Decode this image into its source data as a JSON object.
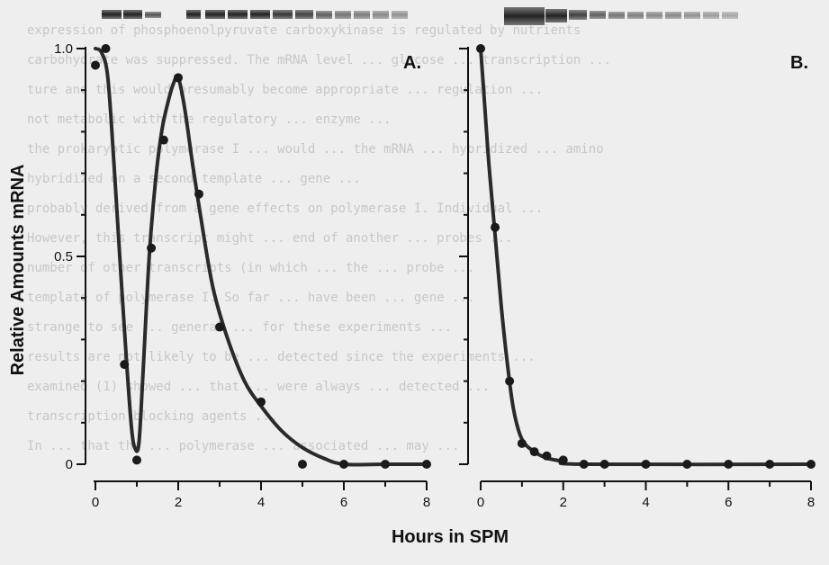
{
  "background_text": [
    "expression of phosphoenolpyruvate carboxykinase is regulated by nutrients",
    "carbohydrate was suppressed. The mRNA level ... glucose ... transcription ...",
    "ture and this would presumably become appropriate ... regulation ...",
    "not metabolic with the regulatory ... enzyme ...",
    "the prokaryotic polymerase I ... would ... the mRNA ... hybridized ... amino",
    "hybridized on a second template ... gene ...",
    "probably derived from a gene effects on polymerase I. Individual ...",
    "However, this transcript might ... end of another ... probes ...",
    "number of other transcripts (in which ... the ... probe ...",
    "template of polymerase I. So far ... have been ... gene ...",
    "strange to see ... general ... for these experiments ...",
    "results are not likely to be ... detected since the experiments ...",
    "examined (1) showed ... that ... were always ... detected ...",
    "transcription blocking agents ...",
    "In ... that the ... polymerase ... associated ... may ..."
  ],
  "colors": {
    "curve": "#2a2a2a",
    "axis": "#111111",
    "text": "#111111",
    "background": "#eeeeee"
  },
  "chart_data": [
    {
      "panel": "A.",
      "type": "scatter",
      "xlabel": "Hours in SPM",
      "ylabel": "Relative Amounts mRNA",
      "xlim": [
        0,
        8
      ],
      "ylim": [
        0,
        1.0
      ],
      "x_ticks": [
        "0",
        "2",
        "4",
        "6",
        "8"
      ],
      "y_ticks": [
        "0",
        "0.5",
        "1.0"
      ],
      "points": [
        {
          "x": 0,
          "y": 0.96
        },
        {
          "x": 0.25,
          "y": 1.0
        },
        {
          "x": 0.7,
          "y": 0.24
        },
        {
          "x": 1.0,
          "y": 0.01
        },
        {
          "x": 1.35,
          "y": 0.52
        },
        {
          "x": 1.65,
          "y": 0.78
        },
        {
          "x": 2.0,
          "y": 0.93
        },
        {
          "x": 2.5,
          "y": 0.65
        },
        {
          "x": 3.0,
          "y": 0.33
        },
        {
          "x": 4.0,
          "y": 0.15
        },
        {
          "x": 5.0,
          "y": 0.0
        },
        {
          "x": 6.0,
          "y": 0.0
        },
        {
          "x": 7.0,
          "y": 0.0
        },
        {
          "x": 8.0,
          "y": 0.0
        }
      ],
      "fit_curve": [
        [
          0,
          1.0
        ],
        [
          0.15,
          0.99
        ],
        [
          0.3,
          0.93
        ],
        [
          0.45,
          0.72
        ],
        [
          0.6,
          0.48
        ],
        [
          0.75,
          0.25
        ],
        [
          0.87,
          0.09
        ],
        [
          0.95,
          0.04
        ],
        [
          1.05,
          0.05
        ],
        [
          1.15,
          0.22
        ],
        [
          1.3,
          0.5
        ],
        [
          1.45,
          0.68
        ],
        [
          1.6,
          0.8
        ],
        [
          1.75,
          0.87
        ],
        [
          1.9,
          0.92
        ],
        [
          2.0,
          0.93
        ],
        [
          2.15,
          0.86
        ],
        [
          2.35,
          0.72
        ],
        [
          2.6,
          0.56
        ],
        [
          2.85,
          0.42
        ],
        [
          3.2,
          0.3
        ],
        [
          3.6,
          0.2
        ],
        [
          4.0,
          0.14
        ],
        [
          4.5,
          0.08
        ],
        [
          5.0,
          0.04
        ],
        [
          5.5,
          0.015
        ],
        [
          6.0,
          0.0
        ],
        [
          7.0,
          0.0
        ],
        [
          8.0,
          0.0
        ]
      ]
    },
    {
      "panel": "B.",
      "type": "scatter",
      "xlim": [
        0,
        8
      ],
      "ylim": [
        0,
        1.0
      ],
      "x_ticks": [
        "0",
        "2",
        "4",
        "6",
        "8"
      ],
      "points": [
        {
          "x": 0,
          "y": 1.0
        },
        {
          "x": 0.35,
          "y": 0.57
        },
        {
          "x": 0.7,
          "y": 0.2
        },
        {
          "x": 1.0,
          "y": 0.05
        },
        {
          "x": 1.3,
          "y": 0.03
        },
        {
          "x": 1.6,
          "y": 0.02
        },
        {
          "x": 2.0,
          "y": 0.01
        },
        {
          "x": 2.5,
          "y": 0.0
        },
        {
          "x": 3.0,
          "y": 0.0
        },
        {
          "x": 4.0,
          "y": 0.0
        },
        {
          "x": 5.0,
          "y": 0.0
        },
        {
          "x": 6.0,
          "y": 0.0
        },
        {
          "x": 7.0,
          "y": 0.0
        },
        {
          "x": 8.0,
          "y": 0.0
        }
      ],
      "fit_curve": [
        [
          0,
          1.0
        ],
        [
          0.1,
          0.86
        ],
        [
          0.2,
          0.72
        ],
        [
          0.35,
          0.55
        ],
        [
          0.5,
          0.38
        ],
        [
          0.65,
          0.24
        ],
        [
          0.8,
          0.13
        ],
        [
          1.0,
          0.06
        ],
        [
          1.3,
          0.03
        ],
        [
          1.6,
          0.015
        ],
        [
          2.0,
          0.007
        ],
        [
          2.5,
          0.0
        ],
        [
          8.0,
          0.0
        ]
      ]
    }
  ]
}
